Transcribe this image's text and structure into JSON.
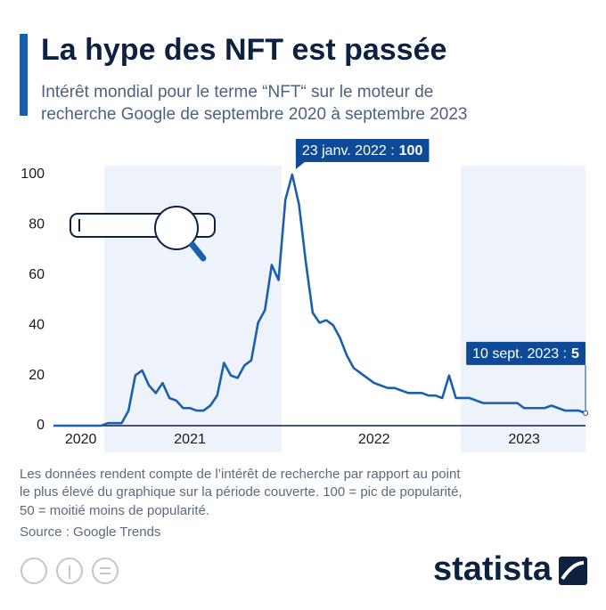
{
  "chart_data": {
    "type": "line",
    "title": "La hype des NFT est passée",
    "subtitle": [
      "Intérêt mondial pour le terme “NFT“ sur le moteur de",
      "recherche Google de septembre 2020 à septembre 2023"
    ],
    "categories": [
      null,
      null,
      null,
      null,
      "2020",
      null,
      null,
      null,
      null,
      null,
      null,
      null,
      null,
      null,
      null,
      null,
      null,
      null,
      null,
      null,
      "2021",
      null,
      null,
      null,
      null,
      null,
      null,
      null,
      null,
      null,
      null,
      null,
      null,
      null,
      null,
      null,
      null,
      null,
      null,
      null,
      null,
      null,
      null,
      null,
      null,
      null,
      null,
      "2022",
      null,
      null,
      null,
      null,
      null,
      null,
      null,
      null,
      null,
      null,
      null,
      null,
      null,
      null,
      null,
      null,
      null,
      null,
      null,
      null,
      null,
      "2023",
      null,
      null,
      null,
      null,
      null,
      null,
      null,
      null,
      null
    ],
    "series": [
      {
        "name": "NFT",
        "color": "#1b5fad",
        "values": [
          0,
          0,
          0,
          0,
          0,
          0,
          0,
          0,
          1,
          1,
          1,
          6,
          20,
          22,
          16,
          13,
          17,
          11,
          10,
          7,
          7,
          6,
          6,
          8,
          12,
          25,
          20,
          19,
          24,
          26,
          41,
          46,
          64,
          58,
          90,
          100,
          88,
          65,
          45,
          41,
          42,
          40,
          35,
          28,
          23,
          21,
          19,
          17,
          16,
          15,
          15,
          14,
          13,
          13,
          13,
          12,
          12,
          11,
          20,
          11,
          11,
          11,
          10,
          9,
          9,
          9,
          9,
          9,
          9,
          7,
          7,
          7,
          7,
          8,
          7,
          6,
          6,
          6,
          5
        ]
      }
    ],
    "ylim": [
      0,
      100
    ],
    "yticks": [
      0,
      20,
      40,
      60,
      80,
      100
    ],
    "grid": false,
    "annotations": [
      "23 janv. 2022 :",
      "10 sept. 2023 :"
    ],
    "notes": [
      "Les données rendent compte de l’intérêt de recherche par rapport au point",
      "le plus élevé du graphique sur la période couverte. 100 = pic de popularité,",
      "50 = moitié moins de popularité."
    ],
    "source": "Source : Google Trends",
    "brand": "statista"
  }
}
